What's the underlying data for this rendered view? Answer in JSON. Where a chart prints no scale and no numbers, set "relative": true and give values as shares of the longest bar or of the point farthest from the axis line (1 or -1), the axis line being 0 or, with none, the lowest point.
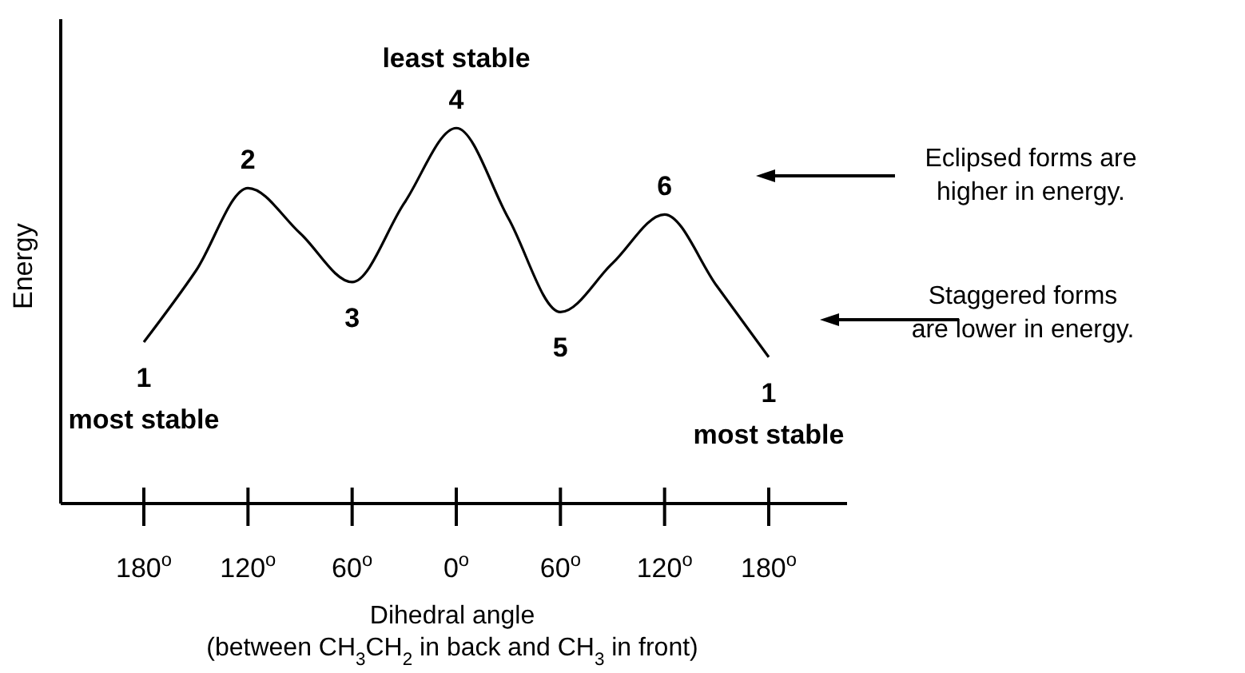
{
  "chart_data": {
    "type": "line",
    "relative": true,
    "ylabel": "Energy",
    "xlabel": "Dihedral angle\n(between CH$_{3}$CH$_{2}$ in back and CH$_{3}$ in front)",
    "categories": [
      "180$^{o}$",
      null,
      "120$^{o}$",
      null,
      "60$^{o}$",
      null,
      "0$^{o}$",
      null,
      "60$^{o}$",
      null,
      "120$^{o}$",
      null,
      "180$^{o}$"
    ],
    "series": [
      {
        "color": "#000000",
        "values": [
          0.43,
          0.62,
          0.84,
          0.72,
          0.59,
          0.8,
          1,
          0.76,
          0.51,
          0.64,
          0.77,
          0.58,
          0.39
        ]
      }
    ],
    "annotations": [
      "1\nmost stable",
      "2",
      "3",
      "least stable\n4",
      "5",
      "6",
      "1\nmost stable",
      "Eclipsed forms are\nhigher in energy.",
      "Staggered forms\nare lower in energy."
    ]
  }
}
